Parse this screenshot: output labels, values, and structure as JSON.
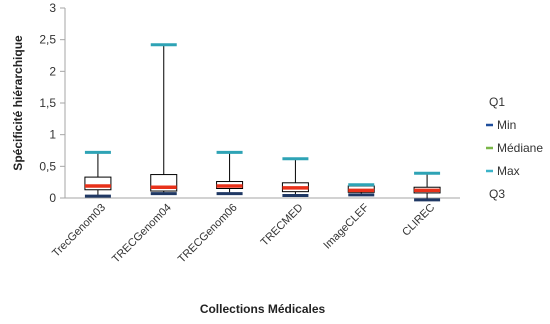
{
  "chart_data": {
    "type": "box",
    "xlabel": "Collections Médicales",
    "ylabel": "Spécificité hiérarchique",
    "ylim": [
      0,
      3
    ],
    "yticks": [
      "0",
      "0,5",
      "1",
      "1,5",
      "2",
      "2,5",
      "3"
    ],
    "categories": [
      "TrecGenom03",
      "TRECGenom04",
      "TRECGenom06",
      "TRECMED",
      "ImageCLEF",
      "CLIREC"
    ],
    "series": [
      {
        "name": "Min",
        "values": [
          0.03,
          0.07,
          0.07,
          0.04,
          0.05,
          -0.03
        ]
      },
      {
        "name": "Q1",
        "values": [
          0.13,
          0.11,
          0.15,
          0.1,
          0.09,
          0.08
        ]
      },
      {
        "name": "Médiane",
        "values": [
          0.19,
          0.17,
          0.19,
          0.16,
          0.12,
          0.12
        ]
      },
      {
        "name": "Q3",
        "values": [
          0.33,
          0.37,
          0.26,
          0.24,
          0.19,
          0.17
        ]
      },
      {
        "name": "Max",
        "values": [
          0.72,
          2.42,
          0.72,
          0.62,
          0.21,
          0.39
        ]
      }
    ],
    "legend": {
      "position": "right",
      "entries": [
        {
          "label": "Q1",
          "marker": false
        },
        {
          "label": "Min",
          "marker": true,
          "color": "#1f4e9c"
        },
        {
          "label": "Médiane",
          "marker": true,
          "color": "#7ab648"
        },
        {
          "label": "Max",
          "marker": true,
          "color": "#3bb3c8"
        },
        {
          "label": "Q3",
          "marker": false
        }
      ]
    },
    "colors": {
      "min": "#1f3864",
      "median": "#e8311a",
      "max": "#2ea3b5",
      "box": "#000000",
      "axis": "#a6a6a6"
    }
  }
}
